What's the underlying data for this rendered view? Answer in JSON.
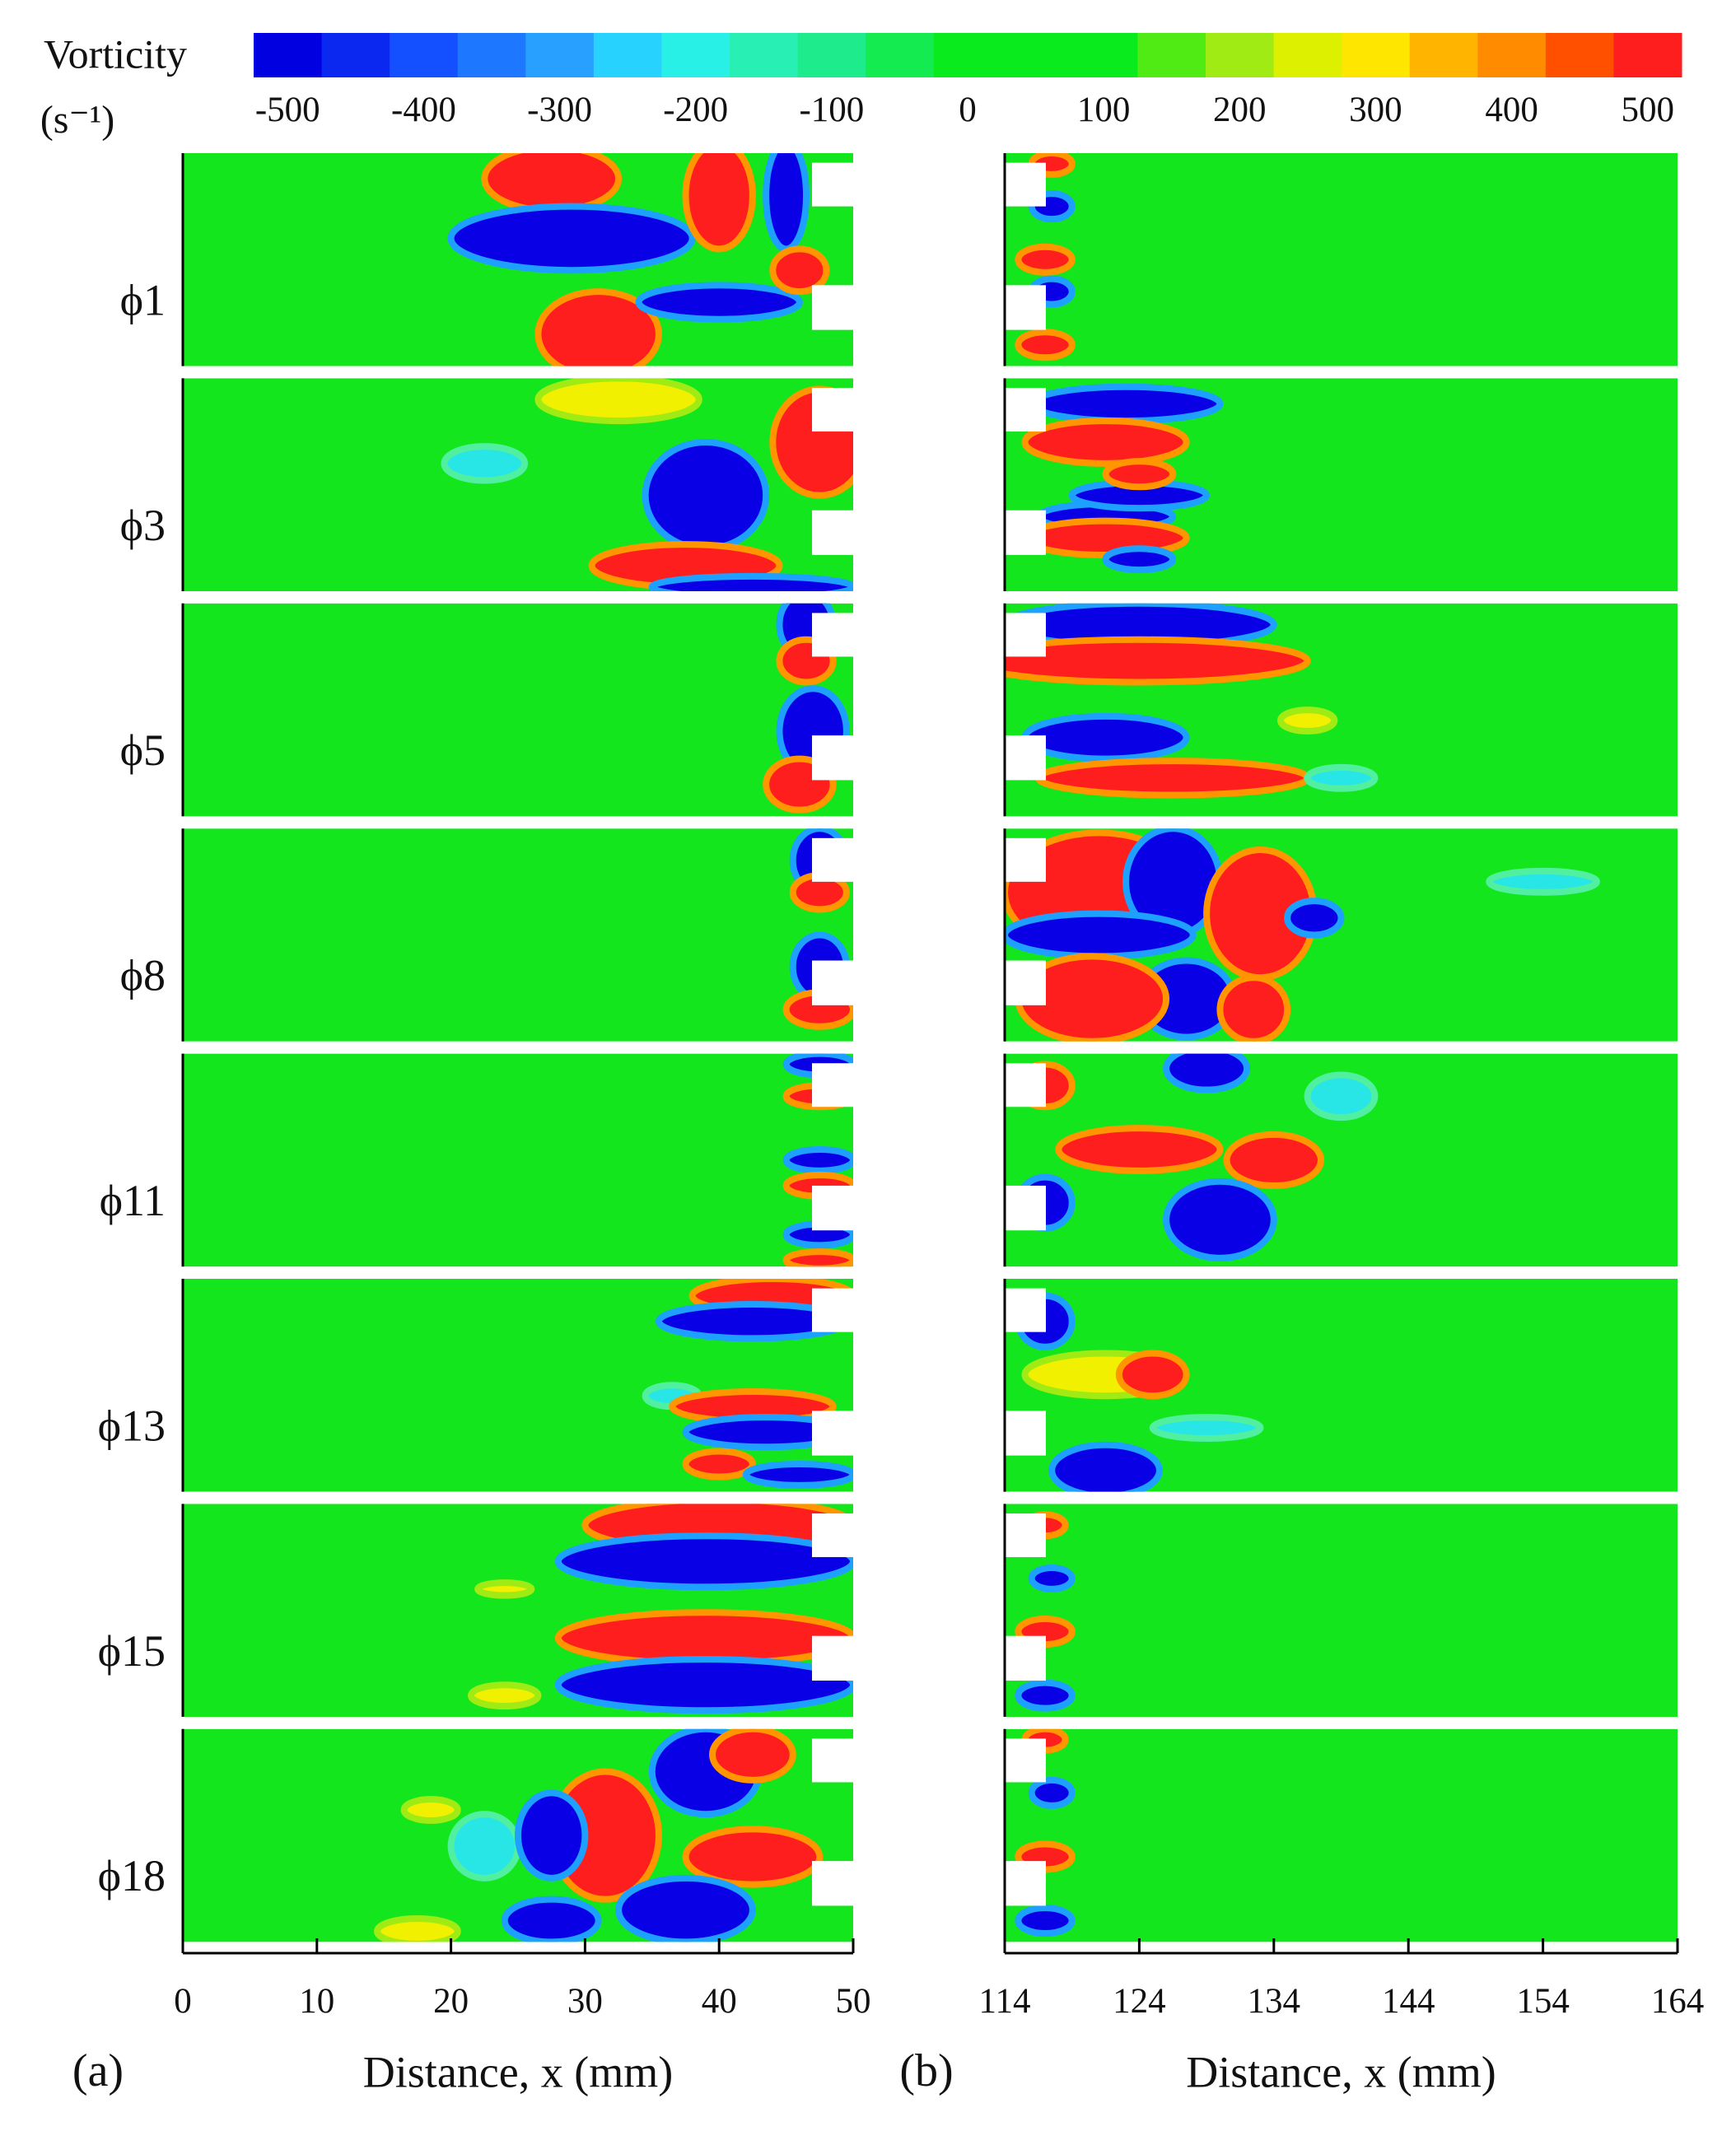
{
  "chart_data": {
    "type": "contour",
    "colorbar": {
      "title": "Vorticity",
      "unit": "(s⁻¹)",
      "lim": [
        -525,
        525
      ],
      "ticks": [
        -500,
        -400,
        -300,
        -200,
        -100,
        0,
        100,
        200,
        300,
        400,
        500
      ],
      "colors": [
        "#0000e0",
        "#0a28f0",
        "#1450ff",
        "#1e78ff",
        "#28a0ff",
        "#28d2ff",
        "#28f0e6",
        "#28f0b4",
        "#1eeb8c",
        "#14eb50",
        "#0aeb1e",
        "#0aeb1e",
        "#0aeb1e",
        "#50eb14",
        "#a0eb14",
        "#dcf000",
        "#ffe600",
        "#ffb400",
        "#ff8c00",
        "#ff5000",
        "#ff1e1e"
      ]
    },
    "row_labels": [
      "ϕ1",
      "ϕ3",
      "ϕ5",
      "ϕ8",
      "ϕ11",
      "ϕ13",
      "ϕ15",
      "ϕ18"
    ],
    "panels": [
      {
        "label": "(a)",
        "xlabel": "Distance, x (mm)",
        "xlim": [
          0,
          50
        ],
        "xticks": [
          0,
          10,
          20,
          30,
          40,
          50
        ]
      },
      {
        "label": "(b)",
        "xlabel": "Distance, x (mm)",
        "xlim": [
          114,
          164
        ],
        "xticks": [
          114,
          124,
          134,
          144,
          154,
          164
        ]
      }
    ]
  }
}
